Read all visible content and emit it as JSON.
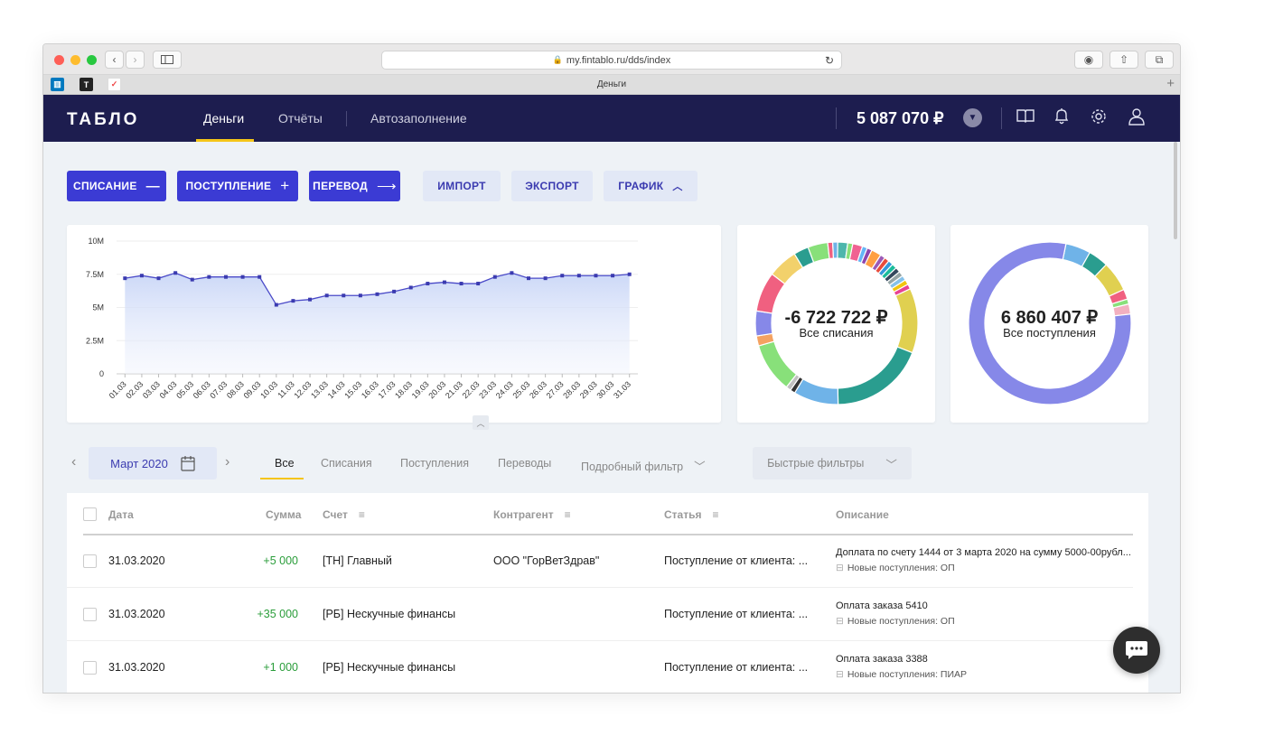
{
  "browser": {
    "url": "my.fintablo.ru/dds/index",
    "tab_title": "Деньги"
  },
  "nav": {
    "logo": "ТАБЛО",
    "links": [
      "Деньги",
      "Отчёты",
      "Автозаполнение"
    ],
    "balance": "5 087 070 ₽"
  },
  "actions": {
    "write_off": "СПИСАНИЕ",
    "income": "ПОСТУПЛЕНИЕ",
    "transfer": "ПЕРЕВОД",
    "import": "ИМПОРТ",
    "export": "ЭКСПОРТ",
    "chart": "ГРАФИК"
  },
  "chart_data": [
    {
      "type": "area",
      "x": [
        "01.03",
        "02.03",
        "03.03",
        "04.03",
        "05.03",
        "06.03",
        "07.03",
        "08.03",
        "09.03",
        "10.03",
        "11.03",
        "12.03",
        "13.03",
        "14.03",
        "15.03",
        "16.03",
        "17.03",
        "18.03",
        "19.03",
        "20.03",
        "21.03",
        "22.03",
        "23.03",
        "24.03",
        "25.03",
        "26.03",
        "27.03",
        "28.03",
        "29.03",
        "30.03",
        "31.03"
      ],
      "values": [
        7.2,
        7.4,
        7.2,
        7.6,
        7.1,
        7.3,
        7.3,
        7.3,
        7.3,
        5.2,
        5.5,
        5.6,
        5.9,
        5.9,
        5.9,
        6.0,
        6.2,
        6.5,
        6.8,
        6.9,
        6.8,
        6.8,
        7.3,
        7.6,
        7.2,
        7.2,
        7.4,
        7.4,
        7.4,
        7.4,
        7.5
      ],
      "ytick_labels": [
        "0",
        "2.5M",
        "5M",
        "7.5M",
        "10M"
      ],
      "ylim": [
        0,
        10
      ]
    },
    {
      "type": "pie",
      "values": [
        2,
        1,
        1,
        2,
        1,
        1,
        1,
        1,
        1,
        1,
        1,
        1,
        1,
        13,
        19,
        9,
        1,
        1,
        10,
        2,
        5,
        8,
        6,
        3,
        4,
        1,
        1,
        2,
        1
      ],
      "colors": [
        "#f06292",
        "#64b5f6",
        "#8e44ad",
        "#ff9f43",
        "#9b59b6",
        "#e74c3c",
        "#3498db",
        "#1abc9c",
        "#34495e",
        "#95a5a6",
        "#85c1e9",
        "#f1c40f",
        "#e84393",
        "#e0d050",
        "#2a9d8f",
        "#6fb3e8",
        "#333333",
        "#c0c0c0",
        "#88e07a",
        "#f4a261",
        "#8688e8",
        "#f06080",
        "#f2d16b",
        "#2a9d8f",
        "#88e07a",
        "#f06080",
        "#6fb3e8",
        "#4db6ac",
        "#88e07a"
      ],
      "total": "-6 722 722 ₽",
      "label": "Все списания"
    },
    {
      "type": "pie",
      "values": [
        5,
        4,
        6,
        2,
        1,
        2,
        80
      ],
      "colors": [
        "#6fb3e8",
        "#2a9d8f",
        "#e0d050",
        "#f06080",
        "#88e07a",
        "#f2b0c0",
        "#8688e8"
      ],
      "total": "6 860 407 ₽",
      "label": "Все поступления"
    }
  ],
  "period": {
    "label": "Март 2020"
  },
  "filters": {
    "tabs": [
      "Все",
      "Списания",
      "Поступления",
      "Переводы"
    ],
    "detailed": "Подробный фильтр",
    "quick": "Быстрые фильтры"
  },
  "table": {
    "headers": [
      "Дата",
      "Сумма",
      "Счет",
      "Контрагент",
      "Статья",
      "Описание"
    ],
    "rows": [
      {
        "date": "31.03.2020",
        "amount": "+5 000",
        "account": "[ТН] Главный",
        "counterparty": "ООО \"ГорВетЗдрав\"",
        "article": "Поступление от клиента: ...",
        "desc": "Доплата по счету 1444 от 3 марта 2020 на сумму 5000-00рубл...",
        "desc2": "Новые поступления: ОП"
      },
      {
        "date": "31.03.2020",
        "amount": "+35 000",
        "account": "[РБ] Нескучные финансы",
        "counterparty": "",
        "article": "Поступление от клиента: ...",
        "desc": "Оплата заказа 5410",
        "desc2": "Новые поступления: ОП"
      },
      {
        "date": "31.03.2020",
        "amount": "+1 000",
        "account": "[РБ] Нескучные финансы",
        "counterparty": "",
        "article": "Поступление от клиента: ...",
        "desc": "Оплата заказа 3388",
        "desc2": "Новые поступления: ПИАР"
      }
    ]
  }
}
